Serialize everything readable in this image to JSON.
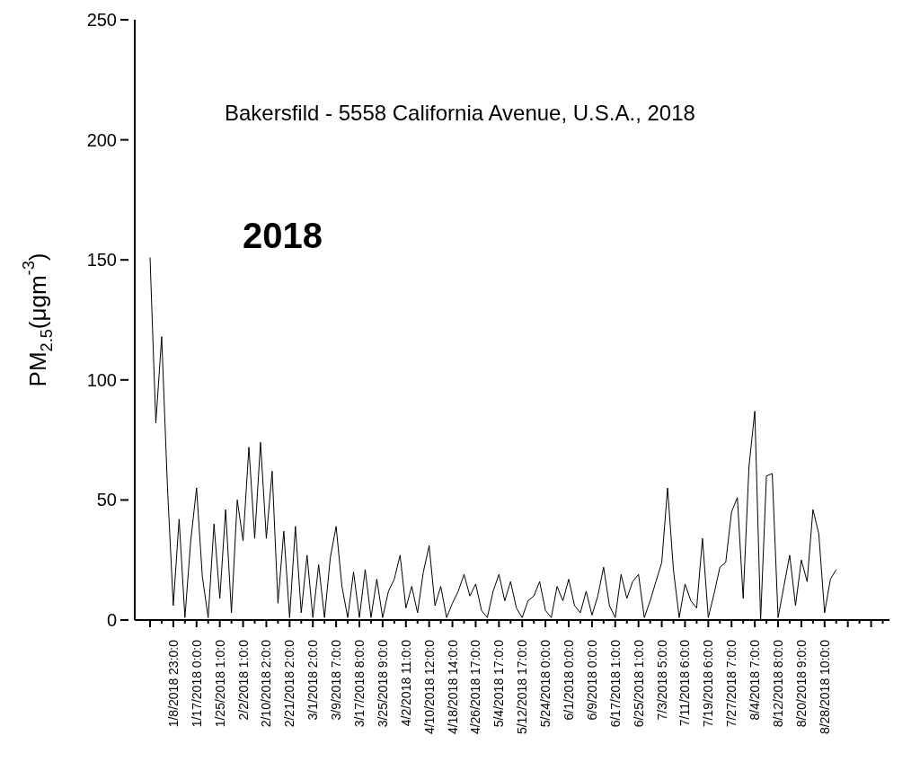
{
  "chart_data": {
    "type": "line",
    "title": "Bakersfild - 5558 California Avenue, U.S.A., 2018",
    "annotations": [
      "2018"
    ],
    "ylabel": "PM$_{2.5}$(μgm$^{-3}$)",
    "ylim": [
      0,
      250
    ],
    "yticks": [
      0,
      50,
      100,
      150,
      200,
      250
    ],
    "categories": [
      null,
      null,
      null,
      null,
      "1/8/2018 23:0:0",
      null,
      null,
      null,
      "1/17/2018 0:0:0",
      null,
      null,
      null,
      "1/25/2018 1:0:0",
      null,
      null,
      null,
      "2/2/2018 1:0:0",
      null,
      null,
      null,
      "2/10/2018 2:0:0",
      null,
      null,
      null,
      "2/21/2018 2:0:0",
      null,
      null,
      null,
      "3/1/2018 2:0:0",
      null,
      null,
      null,
      "3/9/2018 7:0:0",
      null,
      null,
      null,
      "3/17/2018 8:0:0",
      null,
      null,
      null,
      "3/25/2018 9:0:0",
      null,
      null,
      null,
      "4/2/2018 11:0:0",
      null,
      null,
      null,
      "4/10/2018 12:0:0",
      null,
      null,
      null,
      "4/18/2018 14:0:0",
      null,
      null,
      null,
      "4/26/2018 17:0:0",
      null,
      null,
      null,
      "5/4/2018 17:0:0",
      null,
      null,
      null,
      "5/12/2018 17:0:0",
      null,
      null,
      null,
      "5/24/2018 0:0:0",
      null,
      null,
      null,
      "6/1/2018 0:0:0",
      null,
      null,
      null,
      "6/9/2018 0:0:0",
      null,
      null,
      null,
      "6/17/2018 1:0:0",
      null,
      null,
      null,
      "6/25/2018 1:0:0",
      null,
      null,
      null,
      "7/3/2018 5:0:0",
      null,
      null,
      null,
      "7/11/2018 6:0:0",
      null,
      null,
      null,
      "7/19/2018 6:0:0",
      null,
      null,
      null,
      "7/27/2018 7:0:0",
      null,
      null,
      null,
      "8/4/2018 7:0:0",
      null,
      null,
      null,
      "8/12/2018 8:0:0",
      null,
      null,
      null,
      "8/20/2018 9:0:0",
      null,
      null,
      null,
      "8/28/2018 10:0:0",
      null,
      null,
      null,
      null,
      null,
      null,
      null,
      null,
      null,
      null,
      null
    ],
    "marker": "none",
    "line_style": "solid",
    "series": [
      {
        "color": "#000000",
        "values": [
          151,
          82,
          118,
          55,
          6,
          42,
          1,
          33,
          55,
          18,
          1,
          40,
          9,
          46,
          3,
          50,
          33,
          72,
          34,
          74,
          34,
          62,
          7,
          37,
          1,
          39,
          3,
          27,
          1,
          23,
          1,
          26,
          39,
          14,
          1,
          20,
          1,
          21,
          1,
          17,
          1,
          12,
          17,
          27,
          5,
          14,
          3,
          20,
          31,
          6,
          14,
          1,
          7,
          12,
          19,
          10,
          15,
          4,
          1,
          12,
          19,
          8,
          16,
          5,
          1,
          8,
          10,
          16,
          4,
          1,
          14,
          8,
          17,
          6,
          3,
          12,
          2,
          10,
          22,
          6,
          1,
          19,
          9,
          16,
          19,
          1,
          8,
          16,
          24,
          55,
          21,
          1,
          15,
          8,
          5,
          34,
          1,
          11,
          22,
          24,
          45,
          51,
          9,
          64,
          87,
          0,
          60,
          61,
          1,
          14,
          27,
          6,
          25,
          16,
          46,
          36,
          3,
          17,
          21,
          null,
          null,
          null,
          null,
          null,
          null,
          null,
          null,
          null
        ]
      }
    ]
  }
}
